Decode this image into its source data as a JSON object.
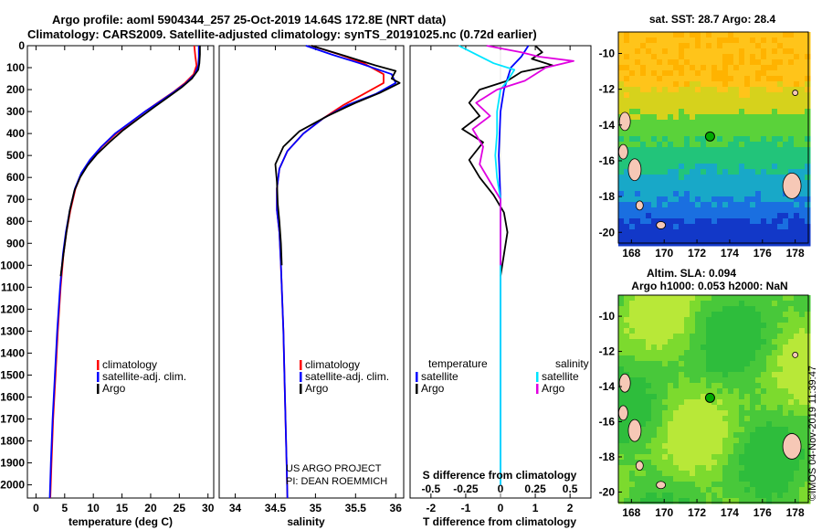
{
  "header": {
    "line1": "Argo profile: aoml 5904344_257 25-Oct-2019 14.64S 172.8E (NRT data)",
    "line2": "Climatology: CARS2009. Satellite-adjusted climatology: synTS_20191025.nc (0.72d earlier)"
  },
  "credits": {
    "line1": "US ARGO PROJECT",
    "line2": "PI: DEAN ROEMMICH"
  },
  "imos_stamp": "©IMOS 04-Nov-2019 11:39:47",
  "colors": {
    "climatology": "#ff0000",
    "satellite": "#0000ff",
    "argo": "#000000",
    "sat_salinity": "#00e5ff",
    "argo_salinity": "#e000e0",
    "float_marker": "#00aa00"
  },
  "depth_axis": {
    "ticks": [
      0,
      100,
      200,
      300,
      400,
      500,
      600,
      700,
      800,
      900,
      1000,
      1100,
      1200,
      1300,
      1400,
      1500,
      1600,
      1700,
      1800,
      1900,
      2000
    ],
    "range": [
      0,
      2060
    ]
  },
  "chart_data": [
    {
      "type": "line",
      "xlabel": "temperature (deg C)",
      "xlim": [
        -1.5,
        31
      ],
      "xticks": [
        0,
        5,
        10,
        15,
        20,
        25,
        30
      ],
      "legend": [
        "climatology",
        "satellite-adj. clim.",
        "Argo"
      ],
      "series": [
        {
          "name": "climatology",
          "color": "#ff0000",
          "points": [
            [
              27.6,
              0
            ],
            [
              27.8,
              50
            ],
            [
              28.0,
              90
            ],
            [
              27.5,
              130
            ],
            [
              26.0,
              170
            ],
            [
              24.0,
              210
            ],
            [
              21.5,
              255
            ],
            [
              19.0,
              300
            ],
            [
              16.5,
              350
            ],
            [
              14.0,
              400
            ],
            [
              11.5,
              460
            ],
            [
              9.5,
              520
            ],
            [
              8.0,
              580
            ],
            [
              6.9,
              650
            ],
            [
              6.0,
              750
            ],
            [
              5.3,
              850
            ],
            [
              4.8,
              950
            ],
            [
              4.3,
              1100
            ],
            [
              3.8,
              1300
            ],
            [
              3.4,
              1500
            ],
            [
              3.0,
              1700
            ],
            [
              2.7,
              1900
            ],
            [
              2.5,
              2060
            ]
          ]
        },
        {
          "name": "satellite-adj. clim.",
          "color": "#0000ff",
          "points": [
            [
              28.4,
              0
            ],
            [
              28.4,
              50
            ],
            [
              28.3,
              90
            ],
            [
              27.7,
              130
            ],
            [
              26.2,
              170
            ],
            [
              24.1,
              210
            ],
            [
              21.6,
              255
            ],
            [
              19.0,
              300
            ],
            [
              16.4,
              350
            ],
            [
              13.8,
              400
            ],
            [
              11.4,
              460
            ],
            [
              9.4,
              520
            ],
            [
              7.9,
              580
            ],
            [
              6.8,
              650
            ],
            [
              5.9,
              750
            ],
            [
              5.2,
              850
            ],
            [
              4.7,
              950
            ],
            [
              4.2,
              1100
            ],
            [
              3.7,
              1300
            ],
            [
              3.3,
              1500
            ],
            [
              2.9,
              1700
            ],
            [
              2.6,
              1900
            ],
            [
              2.4,
              2060
            ]
          ]
        },
        {
          "name": "Argo",
          "color": "#000000",
          "points": [
            [
              28.6,
              0
            ],
            [
              28.6,
              40
            ],
            [
              28.5,
              80
            ],
            [
              28.3,
              110
            ],
            [
              27.2,
              150
            ],
            [
              25.4,
              190
            ],
            [
              23.0,
              235
            ],
            [
              20.6,
              280
            ],
            [
              18.0,
              330
            ],
            [
              15.2,
              385
            ],
            [
              12.8,
              440
            ],
            [
              10.6,
              495
            ],
            [
              9.0,
              545
            ],
            [
              7.7,
              600
            ],
            [
              6.7,
              660
            ],
            [
              5.9,
              750
            ],
            [
              5.3,
              850
            ],
            [
              4.8,
              950
            ],
            [
              4.3,
              1050
            ]
          ]
        }
      ]
    },
    {
      "type": "line",
      "xlabel": "salinity",
      "xlim": [
        33.8,
        36.1
      ],
      "xticks": [
        34,
        34.5,
        35,
        35.5,
        36
      ],
      "xtick_labels": [
        "34",
        "34.5",
        "35",
        "35.5",
        "36"
      ],
      "legend": [
        "climatology",
        "satellite-adj. clim.",
        "Argo"
      ],
      "series": [
        {
          "name": "climatology",
          "color": "#ff0000",
          "points": [
            [
              34.95,
              0
            ],
            [
              35.3,
              40
            ],
            [
              35.6,
              80
            ],
            [
              35.85,
              130
            ],
            [
              35.85,
              170
            ],
            [
              35.6,
              220
            ],
            [
              35.35,
              270
            ],
            [
              35.1,
              330
            ],
            [
              34.85,
              400
            ],
            [
              34.65,
              480
            ],
            [
              34.55,
              560
            ],
            [
              34.52,
              650
            ],
            [
              34.52,
              750
            ],
            [
              34.55,
              850
            ],
            [
              34.57,
              1000
            ],
            [
              34.6,
              1300
            ],
            [
              34.62,
              1600
            ],
            [
              34.64,
              1900
            ],
            [
              34.65,
              2060
            ]
          ]
        },
        {
          "name": "satellite-adj. clim.",
          "color": "#0000ff",
          "points": [
            [
              34.88,
              0
            ],
            [
              35.2,
              40
            ],
            [
              35.55,
              80
            ],
            [
              35.95,
              130
            ],
            [
              36.0,
              170
            ],
            [
              35.75,
              220
            ],
            [
              35.4,
              270
            ],
            [
              35.1,
              330
            ],
            [
              34.85,
              400
            ],
            [
              34.65,
              480
            ],
            [
              34.55,
              560
            ],
            [
              34.52,
              650
            ],
            [
              34.52,
              750
            ],
            [
              34.55,
              850
            ],
            [
              34.57,
              1000
            ],
            [
              34.6,
              1300
            ],
            [
              34.62,
              1600
            ],
            [
              34.64,
              1900
            ],
            [
              34.65,
              2060
            ]
          ]
        },
        {
          "name": "Argo",
          "color": "#000000",
          "points": [
            [
              34.95,
              0
            ],
            [
              35.4,
              50
            ],
            [
              35.75,
              90
            ],
            [
              36.0,
              115
            ],
            [
              35.95,
              150
            ],
            [
              36.05,
              170
            ],
            [
              35.8,
              215
            ],
            [
              35.5,
              260
            ],
            [
              35.15,
              320
            ],
            [
              34.8,
              390
            ],
            [
              34.6,
              460
            ],
            [
              34.5,
              540
            ],
            [
              34.52,
              620
            ],
            [
              34.53,
              720
            ],
            [
              34.55,
              800
            ],
            [
              34.57,
              900
            ],
            [
              34.58,
              1000
            ]
          ]
        }
      ]
    },
    {
      "type": "line",
      "xlabel": "T difference from climatology",
      "xlabel_top": "S difference from climatology",
      "xlim": [
        -2.6,
        2.6
      ],
      "xticks": [
        -2,
        -1,
        0,
        1,
        2
      ],
      "xticks_top": [
        -0.5,
        -0.25,
        0,
        0.25,
        0.5
      ],
      "xtick_labels_top": [
        "-0.5",
        "-0.25",
        "0",
        "0.25",
        "0.5"
      ],
      "legend_temperature_title": "temperature",
      "legend_salinity_title": "salinity",
      "legend": [
        "satellite",
        "Argo",
        "satellite",
        "Argo"
      ],
      "series": [
        {
          "name": "satellite",
          "color": "#0000ff",
          "points": [
            [
              0.8,
              0
            ],
            [
              0.6,
              50
            ],
            [
              0.3,
              100
            ],
            [
              0.1,
              200
            ],
            [
              0,
              300
            ],
            [
              -0.05,
              500
            ],
            [
              0,
              700
            ],
            [
              0,
              1000
            ],
            [
              0,
              1500
            ],
            [
              0,
              2000
            ]
          ]
        },
        {
          "name": "Argo",
          "color": "#000000",
          "points": [
            [
              1.0,
              0
            ],
            [
              1.2,
              30
            ],
            [
              0.9,
              60
            ],
            [
              1.5,
              90
            ],
            [
              0.6,
              120
            ],
            [
              0.2,
              160
            ],
            [
              -0.6,
              200
            ],
            [
              -0.9,
              260
            ],
            [
              -0.6,
              320
            ],
            [
              -1.1,
              380
            ],
            [
              -0.5,
              440
            ],
            [
              -0.9,
              520
            ],
            [
              -0.6,
              600
            ],
            [
              -0.2,
              680
            ],
            [
              0.1,
              760
            ],
            [
              0.2,
              850
            ],
            [
              0.1,
              950
            ],
            [
              0,
              1050
            ]
          ]
        },
        {
          "name": "satellite",
          "color": "#00e5ff",
          "points": [
            [
              -1.2,
              0
            ],
            [
              -0.7,
              40
            ],
            [
              -0.2,
              80
            ],
            [
              0.4,
              110
            ],
            [
              0.2,
              160
            ],
            [
              0,
              200
            ],
            [
              -0.1,
              300
            ],
            [
              -0.1,
              400
            ],
            [
              -0.15,
              500
            ],
            [
              -0.1,
              600
            ],
            [
              0,
              700
            ],
            [
              0,
              900
            ],
            [
              0,
              1200
            ],
            [
              0,
              1600
            ],
            [
              0,
              2000
            ]
          ]
        },
        {
          "name": "Argo",
          "color": "#e000e0",
          "points": [
            [
              -0.4,
              0
            ],
            [
              0.6,
              30
            ],
            [
              1.1,
              50
            ],
            [
              2.1,
              70
            ],
            [
              1.3,
              100
            ],
            [
              1.0,
              130
            ],
            [
              0.7,
              160
            ],
            [
              -0.1,
              200
            ],
            [
              -0.7,
              260
            ],
            [
              -0.3,
              320
            ],
            [
              -0.8,
              380
            ],
            [
              -0.5,
              460
            ],
            [
              -0.6,
              540
            ],
            [
              -0.3,
              620
            ],
            [
              0,
              700
            ],
            [
              0,
              1000
            ]
          ]
        }
      ]
    }
  ],
  "maps": {
    "sst": {
      "title": "sat. SST: 28.7 Argo: 28.4",
      "xticks": [
        168,
        170,
        172,
        174,
        176,
        178
      ],
      "yticks": [
        -10,
        -12,
        -14,
        -16,
        -18,
        -20
      ],
      "xlim": [
        167.2,
        178.8
      ],
      "ylim": [
        -20.6,
        -8.8
      ],
      "float": [
        172.8,
        -14.64
      ]
    },
    "sla": {
      "title_line1": "Altim. SLA: 0.094",
      "title_line2": "Argo h1000: 0.053 h2000: NaN",
      "xticks": [
        168,
        170,
        172,
        174,
        176,
        178
      ],
      "yticks": [
        -10,
        -12,
        -14,
        -16,
        -18,
        -20
      ],
      "xlim": [
        167.2,
        178.8
      ],
      "ylim": [
        -20.6,
        -8.8
      ],
      "float": [
        172.8,
        -14.64
      ]
    }
  }
}
